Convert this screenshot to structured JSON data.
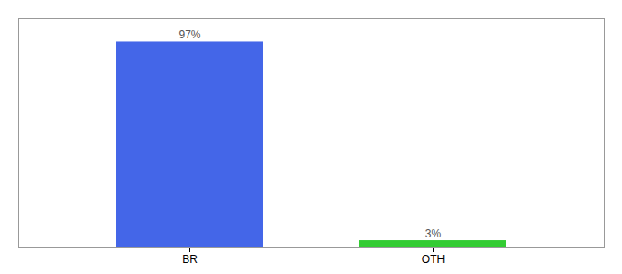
{
  "chart_data": {
    "type": "bar",
    "categories": [
      "BR",
      "OTH"
    ],
    "values": [
      97,
      3
    ],
    "value_labels": [
      "97%",
      "3%"
    ],
    "colors": [
      "#4466e8",
      "#33cc33"
    ],
    "ylim": [
      0,
      108
    ],
    "tick_labels": "x",
    "data_labels": true
  }
}
